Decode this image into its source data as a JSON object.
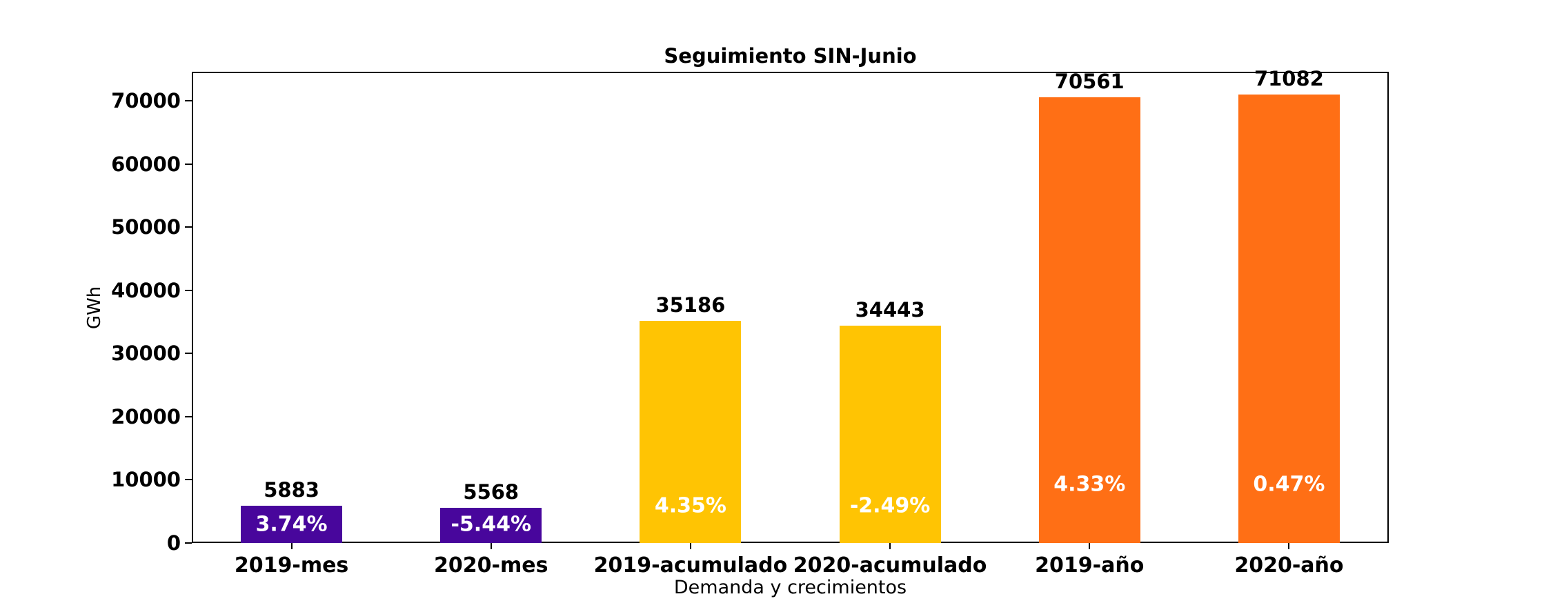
{
  "chart_data": {
    "type": "bar",
    "title": "Seguimiento SIN-Junio",
    "xlabel": "Demanda y crecimientos",
    "ylabel": "GWh",
    "categories": [
      "2019-mes",
      "2020-mes",
      "2019-acumulado",
      "2020-acumulado",
      "2019-año",
      "2020-año"
    ],
    "values": [
      5883,
      5568,
      35186,
      34443,
      70561,
      71082
    ],
    "growth_labels": [
      "3.74%",
      "-5.44%",
      "4.35%",
      "-2.49%",
      "4.33%",
      "0.47%"
    ],
    "growth_label_y": [
      2900,
      2900,
      5900,
      5900,
      9300,
      9300
    ],
    "bar_colors": [
      "#48069C",
      "#48069C",
      "#FFC403",
      "#FFC403",
      "#FF6F15",
      "#FF6F15"
    ],
    "value_label_color": "#000000",
    "growth_label_color": "#ffffff",
    "ylim": [
      0,
      74636
    ],
    "yticks": [
      0,
      10000,
      20000,
      30000,
      40000,
      50000,
      60000,
      70000
    ],
    "grid": false,
    "legend": "none",
    "background": "#ffffff",
    "spine_color": "#000000"
  }
}
